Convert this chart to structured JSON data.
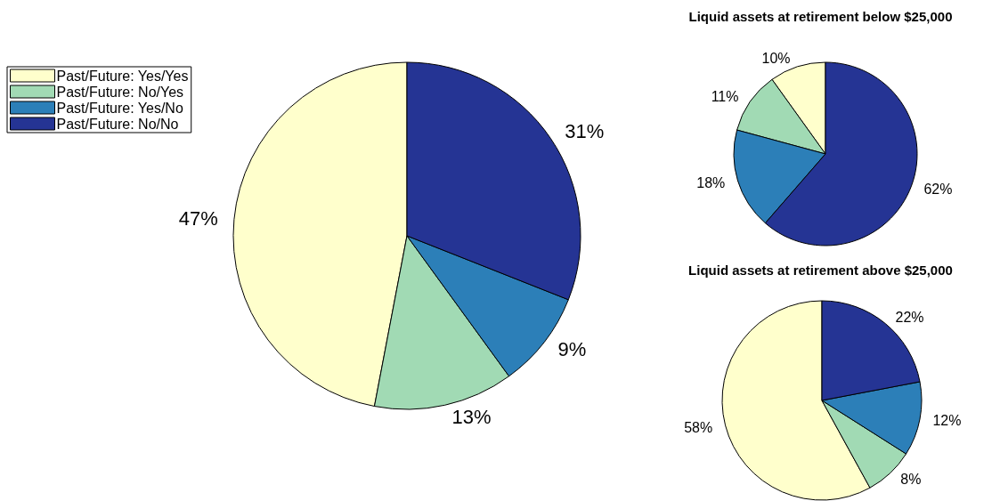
{
  "chart_data": [
    {
      "type": "pie",
      "categories": [
        "Past/Future: Yes/Yes",
        "Past/Future: No/Yes",
        "Past/Future: Yes/No",
        "Past/Future: No/No"
      ],
      "values": [
        47,
        13,
        9,
        31
      ],
      "value_labels": [
        "47%",
        "13%",
        "9%",
        "31%"
      ],
      "colors": [
        "#ffffcc",
        "#a1dab4",
        "#2c7fb8",
        "#253494"
      ],
      "legend": "top left"
    },
    {
      "type": "pie",
      "title": "Liquid assets at retirement below $25,000",
      "categories": [
        null,
        null,
        null,
        null
      ],
      "values": [
        10,
        11,
        18,
        62
      ],
      "value_labels": [
        "10%",
        "11%",
        "18%",
        "62%"
      ],
      "colors": [
        "#ffffcc",
        "#a1dab4",
        "#2c7fb8",
        "#253494"
      ]
    },
    {
      "type": "pie",
      "title": "Liquid assets at retirement above $25,000",
      "categories": [
        null,
        null,
        null,
        null
      ],
      "values": [
        58,
        8,
        12,
        22
      ],
      "value_labels": [
        "58%",
        "8%",
        "12%",
        "22%"
      ],
      "colors": [
        "#ffffcc",
        "#a1dab4",
        "#2c7fb8",
        "#253494"
      ]
    }
  ]
}
